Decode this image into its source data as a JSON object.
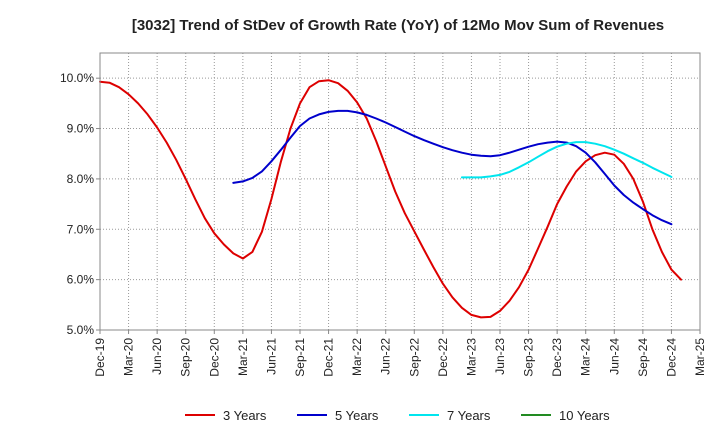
{
  "chart_data": {
    "type": "line",
    "title": "[3032]  Trend of StDev of Growth Rate (YoY) of 12Mo Mov Sum of Revenues",
    "xlabel": "",
    "ylabel": "",
    "x_ticks": [
      "Dec-19",
      "Mar-20",
      "Jun-20",
      "Sep-20",
      "Dec-20",
      "Mar-21",
      "Jun-21",
      "Sep-21",
      "Dec-21",
      "Mar-22",
      "Jun-22",
      "Sep-22",
      "Dec-22",
      "Mar-23",
      "Jun-23",
      "Sep-23",
      "Dec-23",
      "Mar-24",
      "Jun-24",
      "Sep-24",
      "Dec-24",
      "Mar-25"
    ],
    "y_ticks": [
      {
        "value": 5.0,
        "label": "5.0%"
      },
      {
        "value": 6.0,
        "label": "6.0%"
      },
      {
        "value": 7.0,
        "label": "7.0%"
      },
      {
        "value": 8.0,
        "label": "8.0%"
      },
      {
        "value": 9.0,
        "label": "9.0%"
      },
      {
        "value": 10.0,
        "label": "10.0%"
      }
    ],
    "ylim": [
      5.0,
      10.5
    ],
    "x_range_months": [
      0,
      63
    ],
    "x_unit": "months since Dec-19",
    "grid": "dotted",
    "legend_position": "bottom",
    "series": [
      {
        "name": "3 Years",
        "color": "#dd0000",
        "x": [
          0,
          1,
          2,
          3,
          4,
          5,
          6,
          7,
          8,
          9,
          10,
          11,
          12,
          13,
          14,
          15,
          16,
          17,
          18,
          19,
          20,
          21,
          22,
          23,
          24,
          25,
          26,
          27,
          28,
          29,
          30,
          31,
          32,
          33,
          34,
          35,
          36,
          37,
          38,
          39,
          40,
          41,
          42,
          43,
          44,
          45,
          46,
          47,
          48,
          49,
          50,
          51,
          52,
          53,
          54,
          55,
          56,
          57,
          58,
          59,
          60
        ],
        "values": [
          9.93,
          9.91,
          9.82,
          9.68,
          9.5,
          9.28,
          9.02,
          8.72,
          8.38,
          8.0,
          7.6,
          7.22,
          6.92,
          6.7,
          6.52,
          6.42,
          6.55,
          6.95,
          7.6,
          8.35,
          9.0,
          9.5,
          9.82,
          9.94,
          9.96,
          9.9,
          9.75,
          9.52,
          9.2,
          8.75,
          8.25,
          7.75,
          7.32,
          6.96,
          6.6,
          6.25,
          5.92,
          5.65,
          5.44,
          5.3,
          5.25,
          5.26,
          5.38,
          5.58,
          5.85,
          6.2,
          6.62,
          7.05,
          7.5,
          7.85,
          8.15,
          8.35,
          8.47,
          8.52,
          8.48,
          8.3,
          8.0,
          7.55,
          7.0,
          6.55,
          6.2
        ],
        "values_note": "",
        "tail": [
          6.0
        ]
      },
      {
        "name": "5 Years",
        "color": "#0000cc",
        "x": [
          14,
          15,
          16,
          17,
          18,
          19,
          20,
          21,
          22,
          23,
          24,
          25,
          26,
          27,
          28,
          29,
          30,
          31,
          32,
          33,
          34,
          35,
          36,
          37,
          38,
          39,
          40,
          41,
          42,
          43,
          44,
          45,
          46,
          47,
          48,
          49,
          50,
          51,
          52,
          53,
          54,
          55,
          56,
          57,
          58,
          59,
          60
        ],
        "values": [
          7.92,
          7.95,
          8.02,
          8.15,
          8.35,
          8.58,
          8.82,
          9.05,
          9.2,
          9.28,
          9.33,
          9.35,
          9.35,
          9.32,
          9.27,
          9.2,
          9.12,
          9.03,
          8.94,
          8.85,
          8.77,
          8.7,
          8.63,
          8.57,
          8.52,
          8.48,
          8.46,
          8.45,
          8.47,
          8.52,
          8.58,
          8.64,
          8.69,
          8.72,
          8.74,
          8.72,
          8.65,
          8.52,
          8.33,
          8.1,
          7.87,
          7.68,
          7.53,
          7.4,
          7.28,
          7.18,
          7.1
        ]
      },
      {
        "name": "7 Years",
        "color": "#00e5ee",
        "x": [
          38,
          39,
          40,
          41,
          42,
          43,
          44,
          45,
          46,
          47,
          48,
          49,
          50,
          51,
          52,
          53,
          54,
          55,
          56,
          57,
          58,
          59,
          60
        ],
        "values": [
          8.03,
          8.03,
          8.03,
          8.05,
          8.08,
          8.14,
          8.23,
          8.33,
          8.44,
          8.55,
          8.64,
          8.7,
          8.73,
          8.73,
          8.7,
          8.65,
          8.58,
          8.5,
          8.41,
          8.32,
          8.22,
          8.13,
          8.04
        ]
      },
      {
        "name": "10 Years",
        "color": "#228b22",
        "x": [],
        "values": []
      }
    ]
  }
}
